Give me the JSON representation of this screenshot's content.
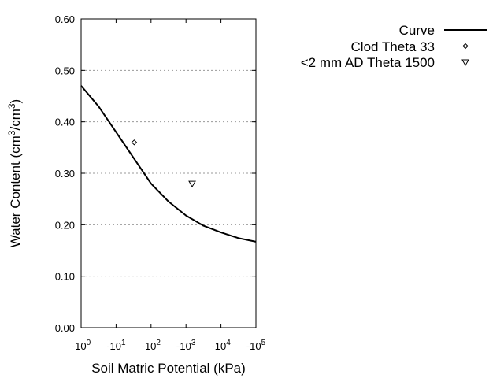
{
  "chart_data": {
    "type": "line",
    "xlabel": "Soil Matric Potential (kPa)",
    "ylabel": "Water Content (cm³/cm³)",
    "ylabel_parts": [
      "Water Content (cm",
      "3",
      "/cm",
      "3",
      ")"
    ],
    "x_scale": "log",
    "xlim": [
      1,
      100000
    ],
    "ylim": [
      0,
      0.6
    ],
    "x_ticks": [
      {
        "base": "-10",
        "exp": "0"
      },
      {
        "base": "-10",
        "exp": "1"
      },
      {
        "base": "-10",
        "exp": "2"
      },
      {
        "base": "-10",
        "exp": "3"
      },
      {
        "base": "-10",
        "exp": "4"
      },
      {
        "base": "-10",
        "exp": "5"
      }
    ],
    "y_ticks": [
      "0.00",
      "0.10",
      "0.20",
      "0.30",
      "0.40",
      "0.50",
      "0.60"
    ],
    "grid": "horizontal dotted",
    "legend_placement": "top-right outside",
    "series": [
      {
        "name": "Curve",
        "type": "line",
        "color": "#000000",
        "x": [
          1,
          3.16,
          10,
          31.6,
          100,
          316,
          1000,
          3162,
          10000,
          31623,
          100000
        ],
        "y": [
          0.47,
          0.43,
          0.38,
          0.33,
          0.28,
          0.245,
          0.218,
          0.198,
          0.185,
          0.174,
          0.167
        ]
      },
      {
        "name": "Clod Theta 33",
        "type": "scatter",
        "marker": "diamond",
        "x": [
          33
        ],
        "y": [
          0.36
        ]
      },
      {
        "name": "<2 mm AD Theta 1500",
        "type": "scatter",
        "marker": "triangle-down",
        "x": [
          1500
        ],
        "y": [
          0.28
        ]
      }
    ]
  }
}
